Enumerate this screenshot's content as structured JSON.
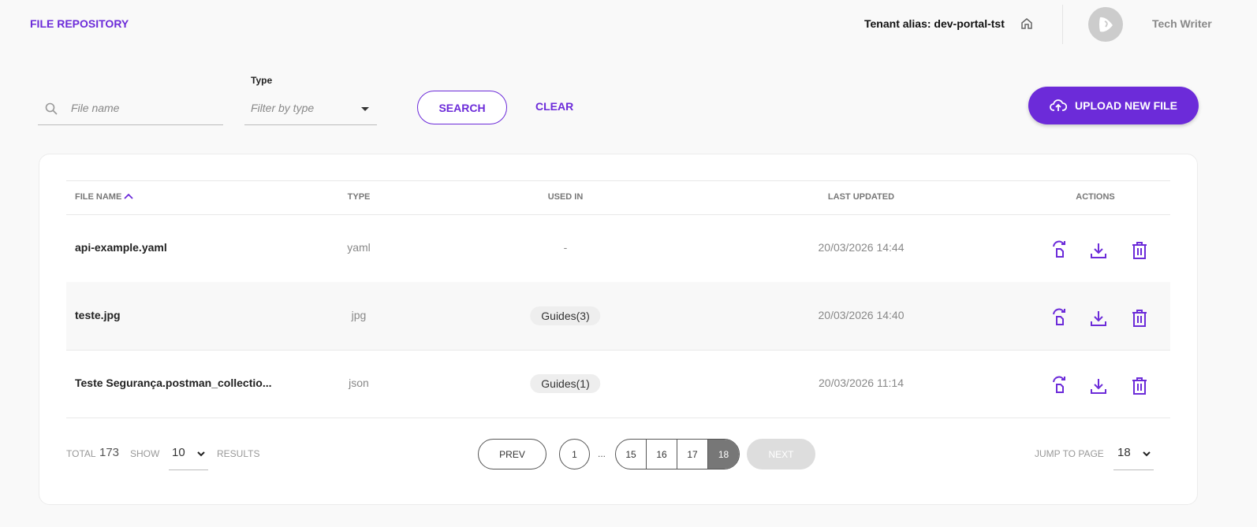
{
  "header": {
    "title": "FILE REPOSITORY",
    "tenant": "Tenant alias: dev-portal-tst",
    "user": "Tech Writer"
  },
  "filters": {
    "search_placeholder": "File name",
    "type_label": "Type",
    "type_placeholder": "Filter by type",
    "search_button": "SEARCH",
    "clear_button": "CLEAR",
    "upload_button": "UPLOAD NEW FILE"
  },
  "table": {
    "columns": [
      "FILE NAME",
      "TYPE",
      "USED IN",
      "LAST UPDATED",
      "ACTIONS"
    ],
    "sort": {
      "column": "FILE NAME",
      "direction": "asc"
    },
    "rows": [
      {
        "name": "api-example.yaml",
        "type": "yaml",
        "used_in": "-",
        "updated": "20/03/2026 14:44"
      },
      {
        "name": "teste.jpg",
        "type": "jpg",
        "used_in": "Guides(3)",
        "updated": "20/03/2026 14:40"
      },
      {
        "name": "Teste Segurança.postman_collectio...",
        "type": "json",
        "used_in": "Guides(1)",
        "updated": "20/03/2026 11:14"
      }
    ]
  },
  "footer": {
    "total_label": "TOTAL",
    "total": "173",
    "show_label": "SHOW",
    "show_value": "10",
    "results_label": "RESULTS",
    "prev": "PREV",
    "next": "NEXT",
    "pages": [
      "1",
      "...",
      "15",
      "16",
      "17",
      "18"
    ],
    "current_page": "18",
    "jump_label": "JUMP TO PAGE",
    "jump_value": "18"
  },
  "colors": {
    "accent": "#6c2bd9"
  }
}
